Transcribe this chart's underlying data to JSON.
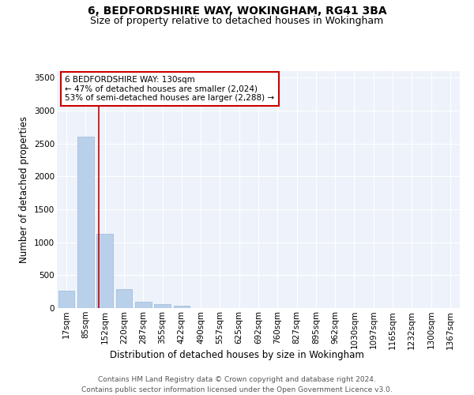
{
  "title1": "6, BEDFORDSHIRE WAY, WOKINGHAM, RG41 3BA",
  "title2": "Size of property relative to detached houses in Wokingham",
  "xlabel": "Distribution of detached houses by size in Wokingham",
  "ylabel": "Number of detached properties",
  "categories": [
    "17sqm",
    "85sqm",
    "152sqm",
    "220sqm",
    "287sqm",
    "355sqm",
    "422sqm",
    "490sqm",
    "557sqm",
    "625sqm",
    "692sqm",
    "760sqm",
    "827sqm",
    "895sqm",
    "962sqm",
    "1030sqm",
    "1097sqm",
    "1165sqm",
    "1232sqm",
    "1300sqm",
    "1367sqm"
  ],
  "values": [
    270,
    2600,
    1130,
    285,
    100,
    55,
    35,
    0,
    0,
    0,
    0,
    0,
    0,
    0,
    0,
    0,
    0,
    0,
    0,
    0,
    0
  ],
  "bar_color": "#b8d0ea",
  "bar_edge_color": "#9ab8d8",
  "marker_line_color": "#cc0000",
  "annotation_text": "6 BEDFORDSHIRE WAY: 130sqm\n← 47% of detached houses are smaller (2,024)\n53% of semi-detached houses are larger (2,288) →",
  "annotation_box_color": "#ffffff",
  "annotation_box_edge_color": "#cc0000",
  "ylim": [
    0,
    3600
  ],
  "yticks": [
    0,
    500,
    1000,
    1500,
    2000,
    2500,
    3000,
    3500
  ],
  "bg_color": "#eef2fa",
  "footer_text": "Contains HM Land Registry data © Crown copyright and database right 2024.\nContains public sector information licensed under the Open Government Licence v3.0.",
  "title1_fontsize": 10,
  "title2_fontsize": 9,
  "xlabel_fontsize": 8.5,
  "ylabel_fontsize": 8.5,
  "tick_fontsize": 7.5,
  "annotation_fontsize": 7.5,
  "footer_fontsize": 6.5
}
